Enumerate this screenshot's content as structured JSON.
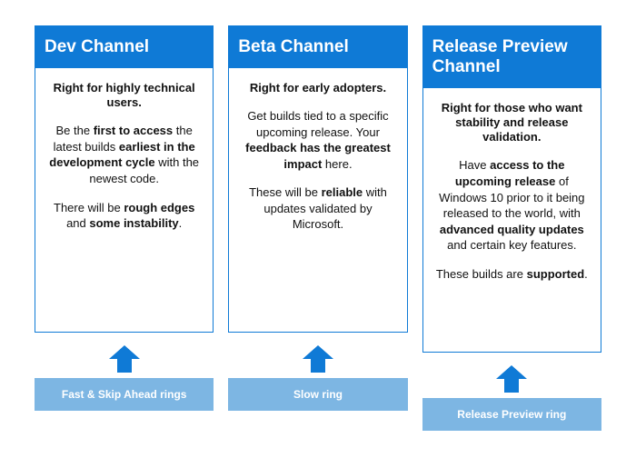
{
  "layout": {
    "header_bg": "#0f7ad6",
    "card_border": "#0f7ad6",
    "footer_bg": "#7db6e3",
    "arrow_color": "#0f7ad6",
    "header_fontsize": 19,
    "body_fontsize": 13,
    "card_body_height": 290,
    "arrow_w": 34,
    "arrow_h": 30
  },
  "columns": [
    {
      "title": "Dev Channel",
      "tagline": "Right for highly technical users.",
      "paragraphs": [
        "Be the <b>first to access</b> the latest builds <b>earliest in the development cycle</b> with the newest code.",
        "There will be <b>rough edges</b> and <b>some instability</b>."
      ],
      "footer": "Fast & Skip Ahead rings"
    },
    {
      "title": "Beta Channel",
      "tagline": "Right for early adopters.",
      "paragraphs": [
        "Get builds tied to a specific upcoming release. Your <b>feedback has the greatest impact</b> here.",
        "These will be <b>reliable</b> with updates validated by Microsoft."
      ],
      "footer": "Slow ring"
    },
    {
      "title": "Release Preview Channel",
      "tagline": "Right for those who want stability and release validation.",
      "paragraphs": [
        "Have <b>access to the upcoming release</b> of Windows 10 prior to it being released to the world, with <b>advanced quality updates</b> and certain key features.",
        "These builds are <b>supported</b>."
      ],
      "footer": "Release Preview ring"
    }
  ]
}
